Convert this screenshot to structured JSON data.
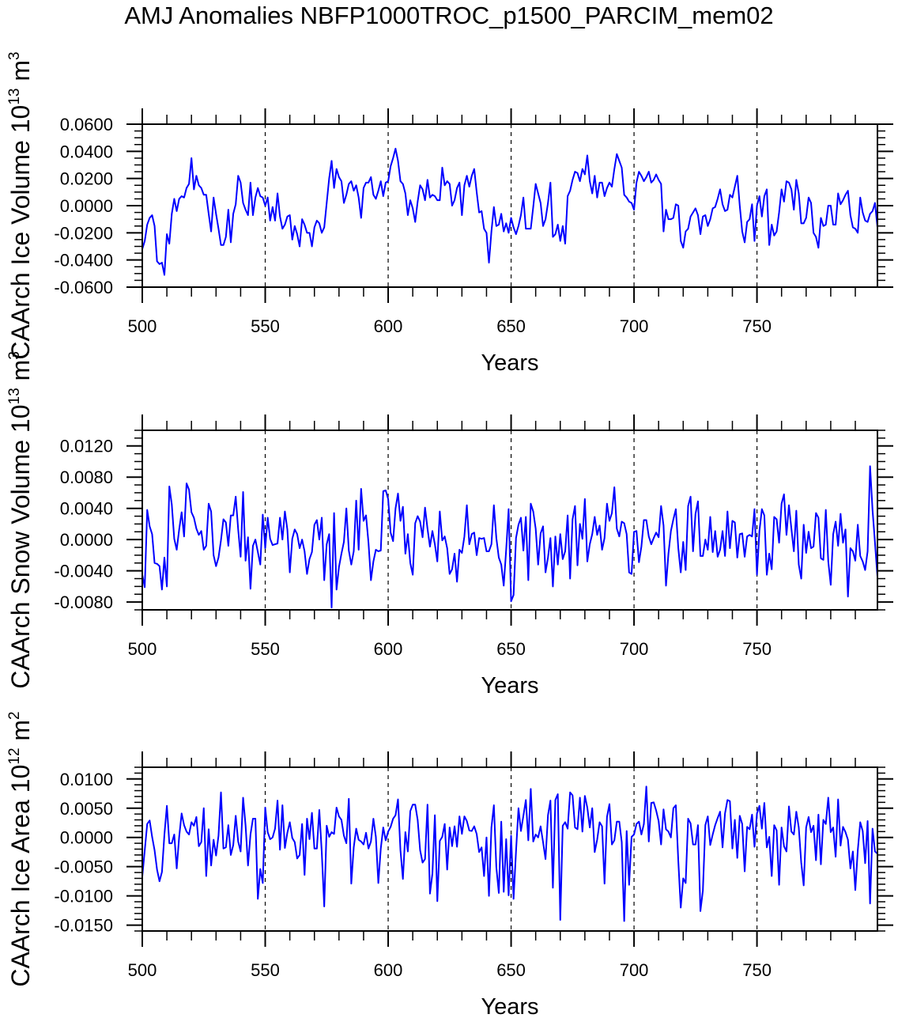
{
  "title": "AMJ Anomalies NBFP1000TROC_p1500_PARCIM_mem02",
  "colors": {
    "series": "#0000ff",
    "axis": "#000000",
    "ref_line": "#000000"
  },
  "chart_data": [
    {
      "type": "line",
      "ylabel": {
        "text": "CAArch Ice Volume 10",
        "exp": "13",
        "unit": " m",
        "unit_exp": "3"
      },
      "xlabel": "Years",
      "xlim": [
        500,
        799
      ],
      "ylim": [
        -0.06,
        0.06
      ],
      "xticks": [
        500,
        550,
        600,
        650,
        700,
        750
      ],
      "xtick_labels": [
        "500",
        "550",
        "600",
        "650",
        "700",
        "750"
      ],
      "xminor_step": 10,
      "yticks": [
        0.06,
        0.04,
        0.02,
        0,
        -0.02,
        -0.04,
        -0.06
      ],
      "ytick_labels": [
        "0.0600",
        "0.0400",
        "0.0200",
        "0.0000",
        "-0.0200",
        "-0.0400",
        "-0.0600"
      ],
      "yminor_step": 0.005,
      "ref_lines_x": [
        550,
        600,
        650,
        700,
        750
      ],
      "x_start": 500,
      "x_step": 1,
      "values": [
        -0.032,
        -0.026,
        -0.014,
        -0.009,
        -0.007,
        -0.015,
        -0.041,
        -0.043,
        -0.042,
        -0.051,
        -0.021,
        -0.028,
        -0.006,
        0.005,
        -0.004,
        0.005,
        0.007,
        0.006,
        0.013,
        0.016,
        0.035,
        0.012,
        0.022,
        0.015,
        0.013,
        0.008,
        0.008,
        -0.006,
        -0.019,
        0.006,
        -0.006,
        -0.017,
        -0.029,
        -0.029,
        -0.023,
        -0.003,
        -0.027,
        -0.006,
        0.001,
        0.022,
        0.017,
        0.002,
        -0.003,
        -0.007,
        0.017,
        -0.007,
        0.006,
        0.013,
        0.007,
        0.006,
        0.0,
        0.006,
        -0.011,
        -0.001,
        -0.011,
        0.009,
        -0.008,
        -0.017,
        -0.014,
        -0.008,
        -0.007,
        -0.025,
        -0.015,
        -0.021,
        -0.03,
        -0.01,
        -0.014,
        -0.02,
        -0.02,
        -0.03,
        -0.016,
        -0.011,
        -0.013,
        -0.02,
        -0.016,
        0.002,
        0.02,
        0.033,
        0.013,
        0.027,
        0.021,
        0.018,
        0.002,
        0.008,
        0.016,
        0.018,
        0.011,
        0.015,
        0.006,
        -0.009,
        0.013,
        0.017,
        0.017,
        0.021,
        0.008,
        0.005,
        0.011,
        0.018,
        0.007,
        0.017,
        0.018,
        0.029,
        0.035,
        0.042,
        0.033,
        0.018,
        0.016,
        0.009,
        -0.007,
        0.004,
        -0.002,
        -0.012,
        0.003,
        0.015,
        0.012,
        0.004,
        0.019,
        0.006,
        0.008,
        0.007,
        0.004,
        0.004,
        0.028,
        0.015,
        0.018,
        0.016,
        0.0,
        0.004,
        0.013,
        0.017,
        -0.007,
        0.015,
        0.022,
        0.014,
        0.022,
        0.027,
        0.01,
        -0.005,
        -0.004,
        -0.017,
        -0.02,
        -0.042,
        -0.019,
        -0.001,
        -0.015,
        -0.014,
        -0.006,
        -0.019,
        -0.013,
        -0.02,
        -0.009,
        -0.016,
        -0.021,
        -0.015,
        -0.007,
        0.006,
        -0.017,
        -0.017,
        -0.017,
        -0.001,
        0.016,
        0.009,
        0.002,
        -0.015,
        -0.01,
        0.002,
        0.017,
        -0.023,
        -0.021,
        -0.014,
        -0.026,
        -0.015,
        -0.028,
        0.007,
        0.011,
        0.019,
        0.025,
        0.024,
        0.018,
        0.027,
        0.023,
        0.037,
        0.018,
        0.009,
        0.022,
        0.006,
        0.017,
        0.017,
        0.007,
        0.013,
        0.017,
        0.014,
        0.027,
        0.038,
        0.033,
        0.028,
        0.008,
        0.006,
        0.003,
        0.002,
        -0.003,
        0.017,
        0.025,
        0.022,
        0.018,
        0.021,
        0.025,
        0.017,
        0.019,
        0.023,
        0.019,
        0.016,
        -0.019,
        -0.003,
        -0.01,
        -0.01,
        -0.009,
        0.001,
        0.0,
        -0.026,
        -0.031,
        -0.019,
        -0.017,
        -0.008,
        -0.005,
        -0.002,
        -0.007,
        -0.021,
        -0.008,
        -0.007,
        -0.015,
        -0.01,
        -0.002,
        -0.001,
        0.005,
        0.012,
        0.001,
        -0.004,
        -0.003,
        0.008,
        0.006,
        0.014,
        0.022,
        0.0,
        -0.019,
        -0.027,
        -0.012,
        -0.01,
        0.001,
        -0.026,
        0.0,
        0.007,
        -0.008,
        0.007,
        0.012,
        -0.029,
        -0.014,
        -0.022,
        -0.019,
        -0.005,
        0.012,
        0.003,
        0.018,
        0.017,
        0.012,
        -0.003,
        0.019,
        0.009,
        -0.013,
        -0.013,
        -0.009,
        0.006,
        0.002,
        -0.02,
        -0.023,
        -0.031,
        -0.009,
        -0.015,
        -0.014,
        0.0,
        0.0,
        -0.014,
        -0.014,
        0.009,
        0.001,
        0.004,
        0.008,
        0.011,
        -0.007,
        -0.016,
        -0.017,
        -0.02,
        0.006,
        -0.005,
        -0.011,
        -0.012,
        -0.006,
        -0.004,
        0.002,
        -0.016
      ]
    },
    {
      "type": "line",
      "ylabel": {
        "text": "CAArch Snow Volume 10",
        "exp": "13",
        "unit": " m",
        "unit_exp": "3"
      },
      "xlabel": "Years",
      "xlim": [
        500,
        799
      ],
      "ylim": [
        -0.009,
        0.014
      ],
      "xticks": [
        500,
        550,
        600,
        650,
        700,
        750
      ],
      "xtick_labels": [
        "500",
        "550",
        "600",
        "650",
        "700",
        "750"
      ],
      "xminor_step": 10,
      "yticks": [
        0.012,
        0.008,
        0.004,
        0,
        -0.004,
        -0.008
      ],
      "ytick_labels": [
        "0.0120",
        "0.0080",
        "0.0040",
        "0.0000",
        "-0.0040",
        "-0.0080"
      ],
      "yminor_step": 0.001,
      "ref_lines_x": [
        550,
        600,
        650,
        700,
        750
      ],
      "x_start": 500,
      "x_step": 1,
      "values": [
        -0.0045,
        -0.0061,
        0.0038,
        0.0017,
        0.0007,
        -0.003,
        -0.0031,
        -0.0034,
        -0.0064,
        -0.0023,
        -0.006,
        0.0068,
        0.0045,
        0.0001,
        -0.0013,
        0.0013,
        0.0035,
        0.0004,
        0.0072,
        0.0064,
        0.0035,
        0.0028,
        0.0014,
        0.0006,
        0.0011,
        -0.0013,
        -0.0008,
        0.0046,
        0.0036,
        -0.002,
        -0.0034,
        -0.0023,
        -0.0001,
        0.0026,
        0.0022,
        -0.0008,
        0.0031,
        0.0031,
        0.0055,
        0.0013,
        -0.0022,
        0.0061,
        -0.0027,
        0.0003,
        -0.0063,
        -0.0008,
        0.0,
        -0.0016,
        -0.0032,
        0.0032,
        -0.0011,
        0.0028,
        0.0001,
        -0.0007,
        -0.0006,
        -0.0005,
        0.0028,
        0.0,
        0.0036,
        0.0013,
        -0.0042,
        0.0001,
        0.0013,
        0.0007,
        -0.0011,
        0.0,
        -0.0015,
        -0.0044,
        -0.0025,
        -0.0016,
        0.0019,
        0.0025,
        0.0,
        0.0028,
        -0.0052,
        -0.0006,
        0.0007,
        -0.0087,
        0.0034,
        -0.0064,
        -0.0035,
        -0.0018,
        -0.0003,
        0.004,
        -0.0014,
        -0.0032,
        -0.0015,
        0.005,
        -0.0013,
        0.0065,
        0.0024,
        0.0031,
        -0.0004,
        -0.0052,
        -0.0028,
        -0.0013,
        -0.0015,
        -0.0014,
        0.0062,
        0.0063,
        0.0052,
        0.0009,
        -0.0002,
        0.004,
        0.0059,
        0.0024,
        0.0042,
        -0.0018,
        0.0007,
        -0.003,
        -0.0045,
        0.0021,
        0.003,
        0.0023,
        0.0003,
        0.0041,
        0.0014,
        -0.0009,
        0.0011,
        -0.0006,
        -0.0028,
        0.0036,
        -0.0001,
        0.0004,
        -0.0011,
        -0.0044,
        -0.0038,
        -0.0018,
        -0.0054,
        -0.0013,
        -0.0017,
        0.0004,
        0.0044,
        -0.0006,
        0.0007,
        0.0009,
        -0.002,
        0.0002,
        0.0001,
        0.0002,
        -0.0015,
        -0.0015,
        -0.0006,
        0.0044,
        0.0002,
        -0.0023,
        -0.0032,
        -0.0059,
        -0.0013,
        0.0039,
        -0.0079,
        -0.0071,
        0.0002,
        0.0019,
        0.0028,
        -0.0014,
        0.0029,
        -0.0052,
        0.0046,
        0.0036,
        0.0014,
        -0.0032,
        0.0008,
        0.0017,
        -0.0042,
        -0.0023,
        0.0002,
        -0.006,
        0.0004,
        -0.0032,
        0.0007,
        -0.0025,
        -0.0015,
        0.0031,
        -0.005,
        0.0026,
        0.0043,
        -0.0033,
        0.002,
        0.0001,
        0.0052,
        -0.0028,
        -0.0006,
        0.0007,
        0.0029,
        0.0006,
        0.0018,
        -0.0013,
        0.0002,
        0.0046,
        0.0024,
        0.0034,
        0.0067,
        0.0014,
        0.0004,
        0.0023,
        0.0021,
        0.0007,
        -0.0042,
        -0.0044,
        0.001,
        0.0011,
        -0.0029,
        -0.0009,
        0.0025,
        0.0025,
        0.0004,
        -0.0006,
        0.0002,
        0.0009,
        0.0003,
        0.0043,
        0.0018,
        -0.0059,
        -0.0018,
        0.0011,
        0.0026,
        0.0039,
        -0.0011,
        -0.0042,
        -0.0003,
        -0.0039,
        0.0043,
        0.0055,
        -0.0015,
        0.0033,
        0.0049,
        -0.0021,
        -0.0021,
        0.0,
        -0.0013,
        0.0029,
        -0.0016,
        0.0011,
        -0.0022,
        -0.0013,
        0.0011,
        -0.0021,
        0.0036,
        -0.0011,
        0.0024,
        0.0022,
        -0.0023,
        0.0007,
        0.0008,
        -0.0022,
        0.0004,
        0.0006,
        0.0004,
        0.0039,
        -0.0045,
        0.0011,
        0.0039,
        0.0031,
        -0.0045,
        -0.0018,
        -0.0038,
        0.0029,
        0.0026,
        -0.0004,
        0.0046,
        0.0058,
        0.0006,
        0.0044,
        0.0014,
        -0.0015,
        0.0037,
        -0.0032,
        -0.005,
        0.0019,
        -0.0017,
        0.001,
        -0.0011,
        -0.0009,
        0.0034,
        0.0028,
        -0.0024,
        -0.0026,
        0.0038,
        -0.0028,
        -0.0058,
        0.0007,
        0.0023,
        -0.0008,
        0.0033,
        -0.0004,
        0.0013,
        -0.0073,
        -0.0011,
        -0.0015,
        -0.0027,
        0.0019,
        -0.0021,
        -0.0028,
        -0.0039,
        -0.0015,
        0.0094,
        0.0038,
        -0.0004,
        -0.0048
      ]
    },
    {
      "type": "line",
      "ylabel": {
        "text": "CAArch Ice Area 10",
        "exp": "12",
        "unit": " m",
        "unit_exp": "2"
      },
      "xlabel": "Years",
      "xlim": [
        500,
        799
      ],
      "ylim": [
        -0.016,
        0.012
      ],
      "xticks": [
        500,
        550,
        600,
        650,
        700,
        750
      ],
      "xtick_labels": [
        "500",
        "550",
        "600",
        "650",
        "700",
        "750"
      ],
      "xminor_step": 10,
      "yticks": [
        0.01,
        0.005,
        0,
        -0.005,
        -0.01,
        -0.015
      ],
      "ytick_labels": [
        "0.0100",
        "0.0050",
        "0.0000",
        "-0.0050",
        "-0.0100",
        "-0.0150"
      ],
      "yminor_step": 0.001,
      "ref_lines_x": [
        550,
        600,
        650,
        700,
        750
      ],
      "x_start": 500,
      "x_step": 1,
      "values": [
        -0.0067,
        -0.0022,
        0.0023,
        0.0029,
        0.0001,
        -0.0022,
        -0.0055,
        -0.0075,
        -0.0059,
        0.0005,
        0.0054,
        -0.001,
        -0.001,
        0.0005,
        -0.0053,
        0.0001,
        0.0041,
        0.0021,
        0.001,
        0.0005,
        0.0026,
        0.002,
        0.0035,
        -0.0015,
        -0.0008,
        0.005,
        -0.0066,
        0.0014,
        -0.0048,
        -0.0004,
        -0.0031,
        0.0003,
        0.0077,
        -0.0019,
        -0.0017,
        0.0021,
        -0.003,
        -0.0013,
        0.0037,
        -0.0007,
        -0.0024,
        0.0068,
        0.0021,
        -0.0048,
        0.0005,
        0.0032,
        0.0032,
        -0.0105,
        -0.0054,
        -0.0078,
        0.0051,
        0.0009,
        -0.0003,
        0.0,
        0.0015,
        0.0063,
        -0.0021,
        0.0055,
        -0.0018,
        0.0008,
        0.0026,
        -0.0001,
        -0.0008,
        -0.0036,
        -0.003,
        0.0023,
        -0.0064,
        0.0032,
        -0.0003,
        0.0042,
        -0.0019,
        -0.0019,
        0.0047,
        -0.0026,
        -0.0118,
        0.002,
        0.0001,
        0.0009,
        0.0006,
        0.0051,
        0.0036,
        0.003,
        0.0003,
        -0.001,
        0.0066,
        -0.0079,
        -0.0017,
        0.0015,
        -0.0004,
        -0.0007,
        -0.0012,
        0.0008,
        -0.0019,
        -0.0007,
        0.0032,
        0.0001,
        -0.0078,
        -0.0019,
        0.0017,
        -0.0005,
        0.001,
        0.0018,
        0.0032,
        0.0038,
        0.0065,
        -0.0022,
        -0.0071,
        0.0009,
        -0.0024,
        0.0045,
        0.0056,
        0.0056,
        0.003,
        -0.0022,
        -0.0043,
        -0.0037,
        0.0056,
        -0.0096,
        -0.0062,
        0.0038,
        -0.0109,
        -0.0006,
        0.0001,
        0.0023,
        -0.0055,
        0.0017,
        -0.0015,
        0.0019,
        -0.0016,
        0.0036,
        0.0006,
        0.0036,
        0.0028,
        0.0012,
        0.0011,
        0.0019,
        0.0006,
        -0.0025,
        -0.0017,
        -0.0066,
        0.0,
        -0.01,
        0.0017,
        0.0055,
        -0.0051,
        -0.0095,
        0.0027,
        -0.0093,
        -0.0003,
        -0.0099,
        0.0003,
        -0.0105,
        -0.0024,
        0.005,
        0.0011,
        0.0037,
        0.0064,
        -0.0005,
        0.0083,
        -0.0007,
        0.0005,
        0.0,
        0.0019,
        -0.0008,
        -0.0037,
        0.0038,
        0.0063,
        -0.0086,
        0.0064,
        0.0074,
        -0.0141,
        0.002,
        0.0026,
        0.0015,
        0.0077,
        0.0072,
        0.0017,
        0.0014,
        0.0068,
        0.001,
        0.0071,
        0.0051,
        0.0017,
        0.005,
        -0.0025,
        -0.0004,
        0.0026,
        0.0019,
        -0.0079,
        0.0035,
        0.0057,
        -0.0012,
        -0.0005,
        0.0027,
        0.0027,
        -0.0008,
        -0.0143,
        0.0011,
        -0.0081,
        0.0001,
        0.0005,
        0.0023,
        0.0027,
        0.0005,
        0.0023,
        0.0087,
        -0.0007,
        0.0059,
        0.006,
        0.0046,
        0.0028,
        -0.0012,
        0.0048,
        0.0014,
        0.001,
        0.0,
        0.005,
        0.0055,
        -0.004,
        -0.012,
        -0.007,
        -0.0078,
        0.0032,
        0.0024,
        -0.0012,
        -0.0012,
        0.0021,
        -0.0126,
        -0.0091,
        0.0021,
        0.0036,
        -0.0013,
        0.0005,
        0.0021,
        0.0033,
        0.0044,
        -0.0017,
        0.0041,
        0.0064,
        0.0062,
        -0.0019,
        0.003,
        -0.0035,
        0.0037,
        0.0023,
        -0.0058,
        0.0018,
        0.0014,
        0.0039,
        -0.0016,
        0.0041,
        0.0054,
        0.0015,
        0.0059,
        -0.0017,
        0.0001,
        -0.0066,
        0.0021,
        0.0012,
        -0.0081,
        0.0017,
        -0.0015,
        -0.0024,
        0.0053,
        0.001,
        0.0005,
        0.0044,
        0.0017,
        -0.0043,
        -0.0082,
        0.0017,
        0.0035,
        0.0009,
        0.002,
        -0.0039,
        0.0039,
        -0.0046,
        0.003,
        0.0023,
        0.0068,
        0.0009,
        0.0017,
        -0.0033,
        0.0065,
        -0.0014,
        0.0018,
        0.0009,
        -0.0004,
        -0.0053,
        -0.0024,
        -0.009,
        -0.0022,
        0.0026,
        0.0011,
        -0.0044,
        0.0028,
        -0.0113,
        0.0015,
        -0.0024,
        -0.0028
      ]
    }
  ]
}
